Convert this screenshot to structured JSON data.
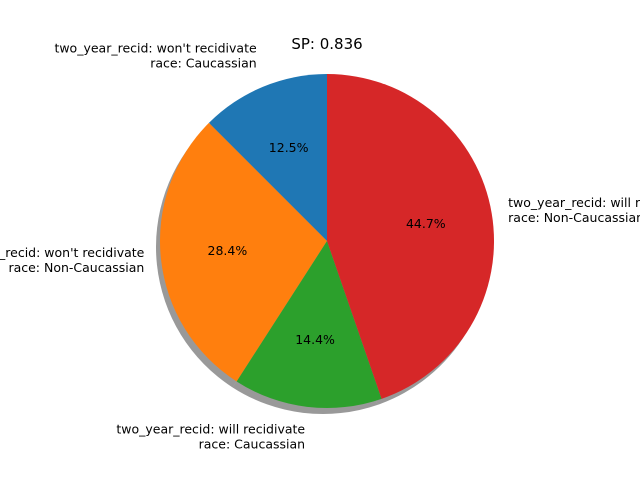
{
  "chart_data": {
    "type": "pie",
    "title": "SP: 0.836",
    "slices": [
      {
        "label_lines": [
          "two_year_recid: won't recidivate",
          "race: Caucassian"
        ],
        "value": 12.5,
        "pct_label": "12.5%",
        "color": "#1f77b4"
      },
      {
        "label_lines": [
          "two_year_recid: won't recidivate",
          "race: Non-Caucassian"
        ],
        "value": 28.4,
        "pct_label": "28.4%",
        "color": "#ff7f0e"
      },
      {
        "label_lines": [
          "two_year_recid: will recidivate",
          "race: Caucassian"
        ],
        "value": 14.4,
        "pct_label": "14.4%",
        "color": "#2ca02c"
      },
      {
        "label_lines": [
          "two_year_recid: will recidivate",
          "race: Non-Caucassian"
        ],
        "value": 44.7,
        "pct_label": "44.7%",
        "color": "#d62728"
      }
    ],
    "start_angle_deg": 90,
    "direction": "counterclockwise",
    "shadow": true
  }
}
